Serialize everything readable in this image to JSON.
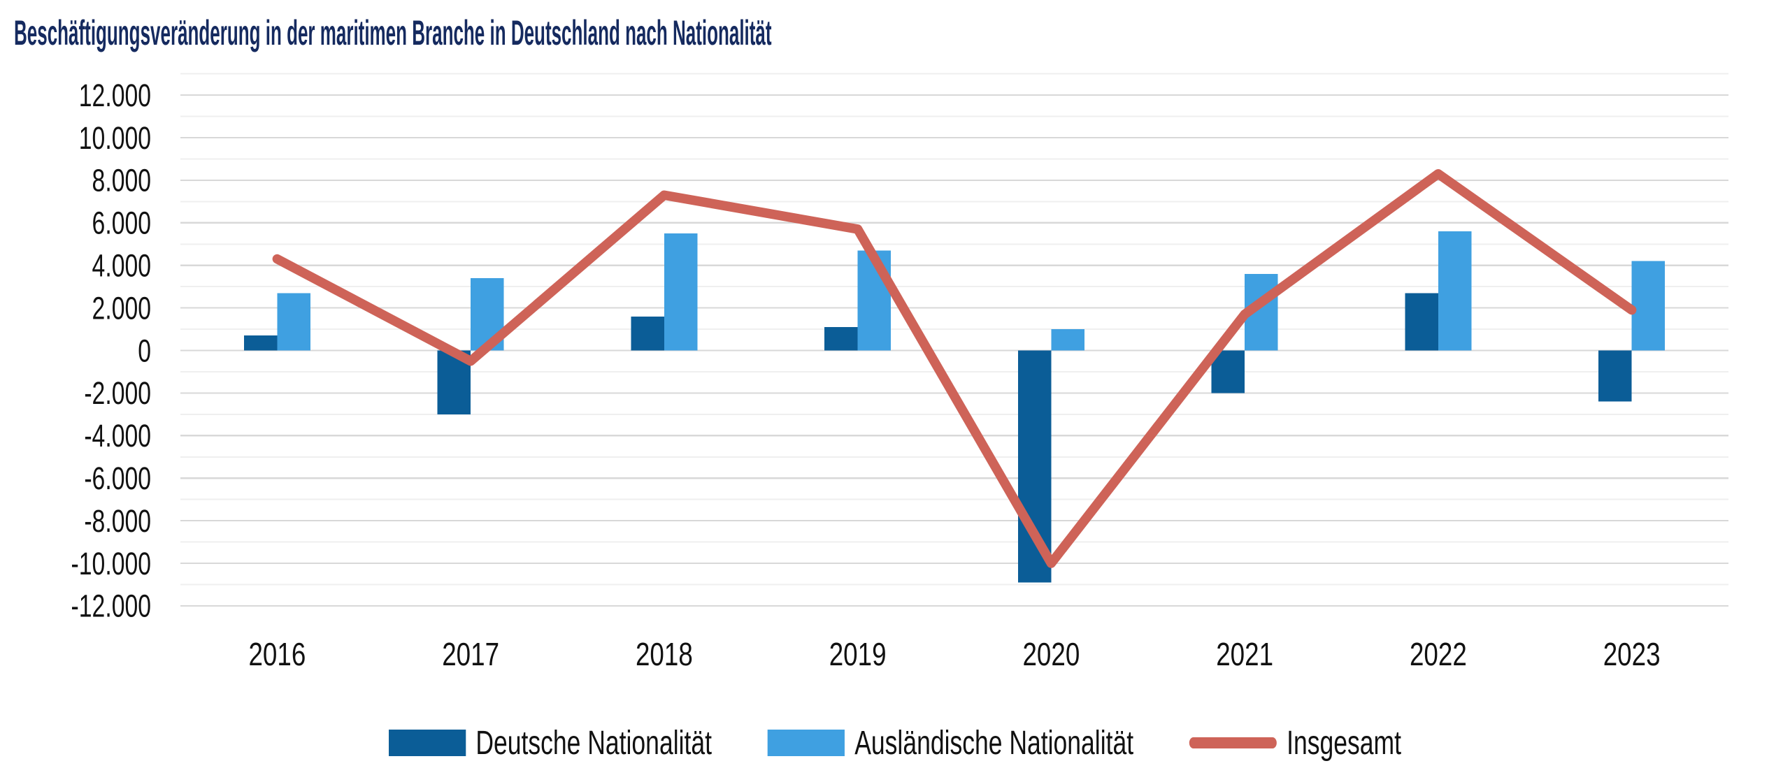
{
  "title": "Beschäftigungsveränderung in der maritimen Branche in Deutschland nach Nationalität",
  "colors": {
    "title": "#152A5F",
    "axis_text": "#111111",
    "grid_major": "#D8D8D8",
    "grid_minor": "#EFEFEF",
    "german_bar": "#0B5D97",
    "foreign_bar": "#3FA0E1",
    "total_line": "#CE6358",
    "background": "#FFFFFF"
  },
  "legend": {
    "items": [
      {
        "label": "Deutsche Nationalität",
        "marker": "box",
        "color_key": "german_bar"
      },
      {
        "label": "Ausländische Nationalität",
        "marker": "box",
        "color_key": "foreign_bar"
      },
      {
        "label": "Insgesamt",
        "marker": "line",
        "color_key": "total_line"
      }
    ]
  },
  "chart_data": {
    "type": "bar",
    "subtype": "grouped-bars-with-line-overlay",
    "title": "Beschäftigungsveränderung in der maritimen Branche in Deutschland nach Nationalität",
    "categories": [
      "2016",
      "2017",
      "2018",
      "2019",
      "2020",
      "2021",
      "2022",
      "2023"
    ],
    "series": [
      {
        "name": "Deutsche Nationalität",
        "type": "bar",
        "color_key": "german_bar",
        "values": [
          700,
          -3000,
          1600,
          1100,
          -10900,
          -2000,
          2700,
          -2400
        ]
      },
      {
        "name": "Ausländische Nationalität",
        "type": "bar",
        "color_key": "foreign_bar",
        "values": [
          2700,
          3400,
          5500,
          4700,
          1000,
          3600,
          5600,
          4200
        ]
      },
      {
        "name": "Insgesamt",
        "type": "line",
        "color_key": "total_line",
        "values": [
          4300,
          -500,
          7300,
          5700,
          -10000,
          1700,
          8300,
          1900
        ]
      }
    ],
    "xlabel": "",
    "ylabel": "",
    "ylim": [
      -12000,
      12000
    ],
    "ytick_step": 2000,
    "minor_grid_step": 1000,
    "ytick_labels": [
      "12.000",
      "10.000",
      "8.000",
      "6.000",
      "4.000",
      "2.000",
      "0",
      "-2.000",
      "-4.000",
      "-6.000",
      "-8.000",
      "-10.000",
      "-12.000"
    ],
    "grid": "horizontal",
    "legend_position": "bottom"
  }
}
